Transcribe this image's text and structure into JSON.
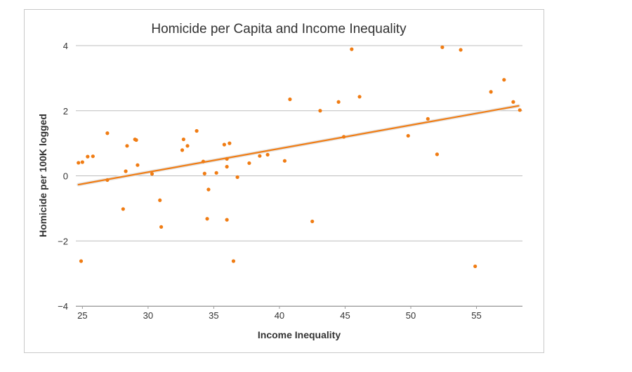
{
  "chart_data": {
    "type": "scatter",
    "title": "Homicide per Capita and Income Inequality",
    "xlabel": "Income Inequality",
    "ylabel": "Homicide per 100K logged",
    "xlim": [
      24.5,
      58.5
    ],
    "ylim": [
      -4,
      4
    ],
    "x_ticks": [
      "25",
      "30",
      "35",
      "40",
      "45",
      "50",
      "55"
    ],
    "y_ticks": [
      "4",
      "2",
      "0",
      "−2",
      "−4"
    ],
    "grid": "horizontal",
    "legend": "none",
    "point_color": "#f07c13",
    "trend_color": "#f07c13",
    "trendline": {
      "x": [
        24.7,
        58.2
      ],
      "y": [
        -0.27,
        2.15
      ]
    },
    "points": [
      {
        "x": 24.7,
        "y": 0.4
      },
      {
        "x": 25.0,
        "y": 0.42
      },
      {
        "x": 24.9,
        "y": -2.62
      },
      {
        "x": 25.4,
        "y": 0.59
      },
      {
        "x": 25.8,
        "y": 0.6
      },
      {
        "x": 26.9,
        "y": 1.31
      },
      {
        "x": 26.9,
        "y": -0.13
      },
      {
        "x": 28.1,
        "y": -1.02
      },
      {
        "x": 28.3,
        "y": 0.14
      },
      {
        "x": 28.4,
        "y": 0.92
      },
      {
        "x": 29.0,
        "y": 1.12
      },
      {
        "x": 29.1,
        "y": 1.1
      },
      {
        "x": 29.2,
        "y": 0.33
      },
      {
        "x": 30.3,
        "y": 0.06
      },
      {
        "x": 30.9,
        "y": -0.75
      },
      {
        "x": 31.0,
        "y": -1.57
      },
      {
        "x": 32.6,
        "y": 0.79
      },
      {
        "x": 32.7,
        "y": 1.12
      },
      {
        "x": 33.0,
        "y": 0.92
      },
      {
        "x": 33.7,
        "y": 1.38
      },
      {
        "x": 34.2,
        "y": 0.44
      },
      {
        "x": 34.3,
        "y": 0.07
      },
      {
        "x": 34.5,
        "y": -1.32
      },
      {
        "x": 34.6,
        "y": -0.42
      },
      {
        "x": 35.2,
        "y": 0.09
      },
      {
        "x": 35.8,
        "y": 0.96
      },
      {
        "x": 36.0,
        "y": 0.52
      },
      {
        "x": 36.0,
        "y": 0.28
      },
      {
        "x": 36.0,
        "y": -1.35
      },
      {
        "x": 36.2,
        "y": 1.0
      },
      {
        "x": 36.5,
        "y": -2.62
      },
      {
        "x": 36.8,
        "y": -0.04
      },
      {
        "x": 37.7,
        "y": 0.39
      },
      {
        "x": 38.5,
        "y": 0.61
      },
      {
        "x": 39.1,
        "y": 0.65
      },
      {
        "x": 40.4,
        "y": 0.46
      },
      {
        "x": 40.8,
        "y": 2.35
      },
      {
        "x": 42.5,
        "y": -1.4
      },
      {
        "x": 43.1,
        "y": 2.0
      },
      {
        "x": 44.5,
        "y": 2.27
      },
      {
        "x": 44.9,
        "y": 1.2
      },
      {
        "x": 45.5,
        "y": 3.89
      },
      {
        "x": 46.1,
        "y": 2.43
      },
      {
        "x": 49.8,
        "y": 1.23
      },
      {
        "x": 51.3,
        "y": 1.75
      },
      {
        "x": 52.0,
        "y": 0.66
      },
      {
        "x": 52.4,
        "y": 3.95
      },
      {
        "x": 53.8,
        "y": 3.87
      },
      {
        "x": 54.9,
        "y": -2.78
      },
      {
        "x": 56.1,
        "y": 2.58
      },
      {
        "x": 57.1,
        "y": 2.95
      },
      {
        "x": 57.8,
        "y": 2.27
      },
      {
        "x": 58.3,
        "y": 2.02
      }
    ]
  }
}
